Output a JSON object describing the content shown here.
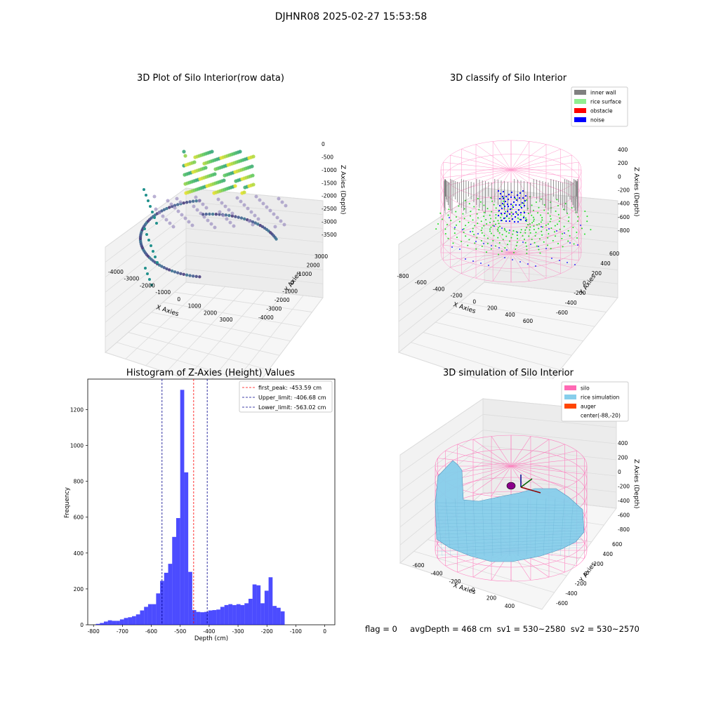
{
  "suptitle": "DJHNR08 2025-02-27 15:53:58",
  "panels": {
    "raw": {
      "title": "3D Plot of Silo Interior(row data)",
      "xlabel": "X Axies",
      "ylabel": "Y Axies",
      "zlabel": "Z Axies (Depth)",
      "xticks": [
        "-4000",
        "-3000",
        "-2000",
        "-1000",
        "0",
        "1000",
        "2000",
        "3000"
      ],
      "yticks": [
        "3000",
        "2000",
        "1000",
        "0",
        "-1000",
        "-2000",
        "-3000",
        "-4000"
      ],
      "zticks": [
        "0",
        "-500",
        "-1000",
        "-1500",
        "-2000",
        "-2500",
        "-3000",
        "-3500"
      ]
    },
    "classify": {
      "title": "3D classify of Silo Interior",
      "xlabel": "X Axies",
      "ylabel": "Y Axies",
      "zlabel": "Z Axies (Depth)",
      "xticks": [
        "-800",
        "-600",
        "-400",
        "-200",
        "0",
        "200",
        "400",
        "600"
      ],
      "yticks": [
        "600",
        "400",
        "200",
        "0",
        "-200",
        "-400",
        "-600"
      ],
      "zticks": [
        "400",
        "200",
        "0",
        "-200",
        "-400",
        "-600",
        "-800"
      ],
      "legend": [
        {
          "label": "inner wall",
          "color": "#808080"
        },
        {
          "label": "rice surface",
          "color": "#90ee90"
        },
        {
          "label": "obstacle",
          "color": "#ff0000"
        },
        {
          "label": "noise",
          "color": "#0000ff"
        }
      ]
    },
    "simulation": {
      "title": "3D simulation of Silo Interior",
      "xlabel": "X Axies",
      "ylabel": "Y Axies",
      "zlabel": "Z Axies (Depth)",
      "xticks": [
        "-600",
        "-400",
        "-200",
        "0",
        "200",
        "400"
      ],
      "yticks": [
        "600",
        "400",
        "200",
        "0",
        "-200",
        "-400",
        "-600"
      ],
      "zticks": [
        "400",
        "200",
        "0",
        "-200",
        "-400",
        "-600",
        "-800"
      ],
      "legend": [
        {
          "label": "silo",
          "color": "#ff69b4"
        },
        {
          "label": "rice simulation",
          "color": "#87ceeb"
        },
        {
          "label": "auger",
          "color": "#ff4500"
        },
        {
          "label": "center(-88,-20)",
          "color": ""
        }
      ]
    }
  },
  "chart_data": {
    "type": "bar",
    "title": "Histogram of Z-Axies (Height) Values",
    "xlabel": "Depth (cm)",
    "ylabel": "Frequency",
    "xlim": [
      -820,
      35
    ],
    "ylim": [
      0,
      1370
    ],
    "xticks": [
      -800,
      -700,
      -600,
      -500,
      -400,
      -300,
      -200,
      -100,
      0
    ],
    "yticks": [
      0,
      200,
      400,
      600,
      800,
      1000,
      1200
    ],
    "bin_width": 13.9,
    "bin_start": -792,
    "bar_color": "#0000ff",
    "values": [
      5,
      10,
      18,
      25,
      22,
      22,
      30,
      38,
      42,
      48,
      58,
      80,
      100,
      115,
      115,
      175,
      245,
      290,
      340,
      490,
      595,
      1310,
      850,
      295,
      82,
      72,
      70,
      72,
      80,
      82,
      85,
      100,
      110,
      115,
      110,
      115,
      110,
      120,
      145,
      225,
      220,
      120,
      190,
      265,
      105,
      95,
      75
    ],
    "vlines": [
      {
        "x": -453.59,
        "color": "#ff0000",
        "label": "first_peak: -453.59 cm"
      },
      {
        "x": -406.68,
        "color": "#00008b",
        "label": "Upper_limit: -406.68 cm"
      },
      {
        "x": -563.02,
        "color": "#00008b",
        "label": "Lower_limit: -563.02 cm"
      }
    ]
  },
  "footer": "flag = 0     avgDepth = 468 cm  sv1 = 530~2580  sv2 = 530~2570"
}
